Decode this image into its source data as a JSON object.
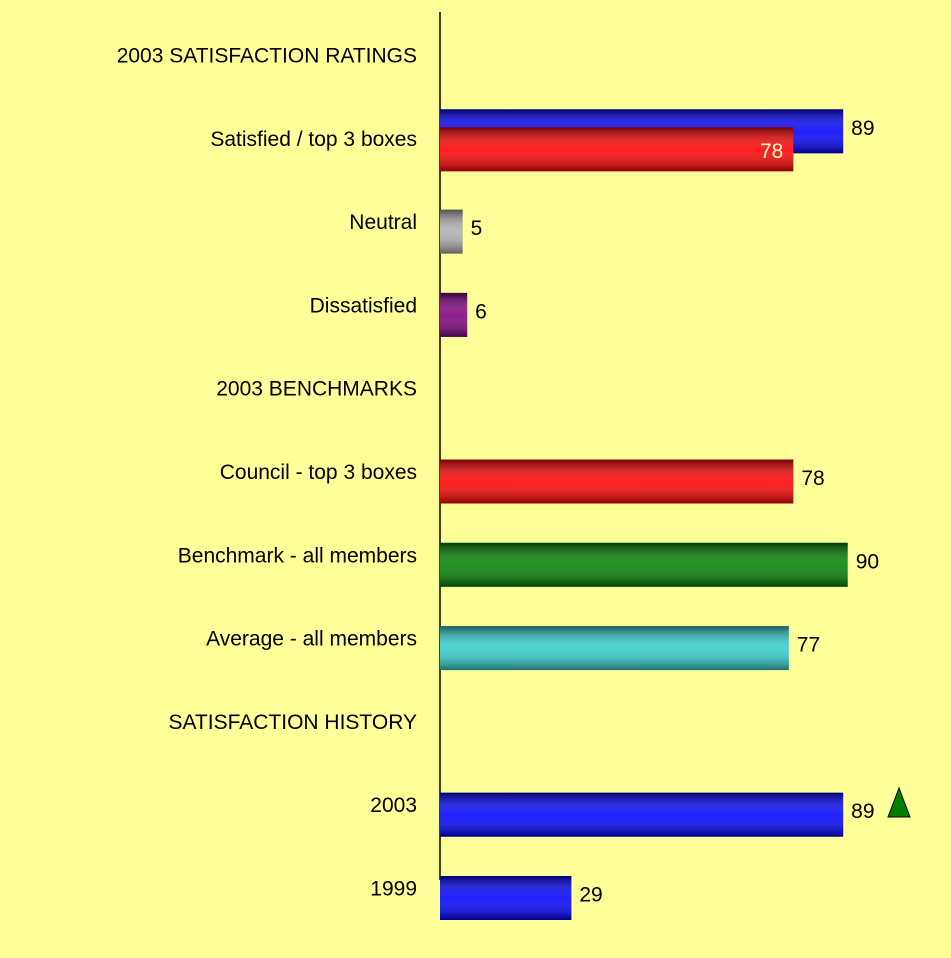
{
  "chart_data": {
    "type": "bar",
    "orientation": "horizontal",
    "categories": [
      "2003 SATISFACTION RATINGS",
      "Satisfied / top 3 boxes",
      "Neutral",
      "Dissatisfied",
      "2003 BENCHMARKS",
      "Council - top 3 boxes",
      "Benchmark - all members",
      "Average - all members",
      "SATISFACTION HISTORY",
      "2003",
      "1999"
    ],
    "series": [
      {
        "values": [
          null,
          89,
          5,
          6,
          null,
          78,
          90,
          77,
          null,
          89,
          29
        ],
        "colors": [
          null,
          "#0000ff",
          "#b0b0b0",
          "#800080",
          null,
          "#ff0000",
          "#008000",
          "#33cccc",
          null,
          "#0000ff",
          "#0000ff"
        ],
        "label_position": "outside"
      },
      {
        "values": [
          null,
          78,
          null,
          null,
          null,
          null,
          null,
          null,
          null,
          null,
          null
        ],
        "colors": [
          null,
          "#ff0000",
          null,
          null,
          null,
          null,
          null,
          null,
          null,
          null,
          null
        ],
        "label_position": "inside"
      }
    ],
    "xlim": [
      0,
      100
    ],
    "background": "#ffff99"
  }
}
